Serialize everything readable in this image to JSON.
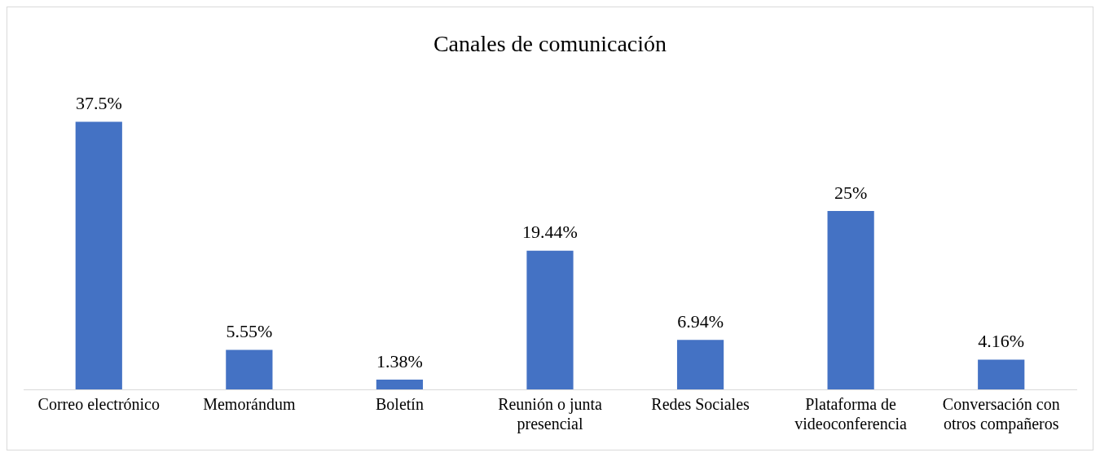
{
  "chart_data": {
    "type": "bar",
    "title": "Canales de comunicación",
    "categories": [
      "Correo electrónico",
      "Memorándum",
      "Boletín",
      "Reunión o junta presencial",
      "Redes Sociales",
      "Plataforma de videoconferencia",
      "Conversación con otros compañeros"
    ],
    "values": [
      37.5,
      5.55,
      1.38,
      19.44,
      6.94,
      25,
      4.16
    ],
    "value_labels": [
      "37.5%",
      "5.55%",
      "1.38%",
      "19.44%",
      "6.94%",
      "25%",
      "4.16%"
    ],
    "color": "#4472c4",
    "grid": false,
    "legend": false
  }
}
